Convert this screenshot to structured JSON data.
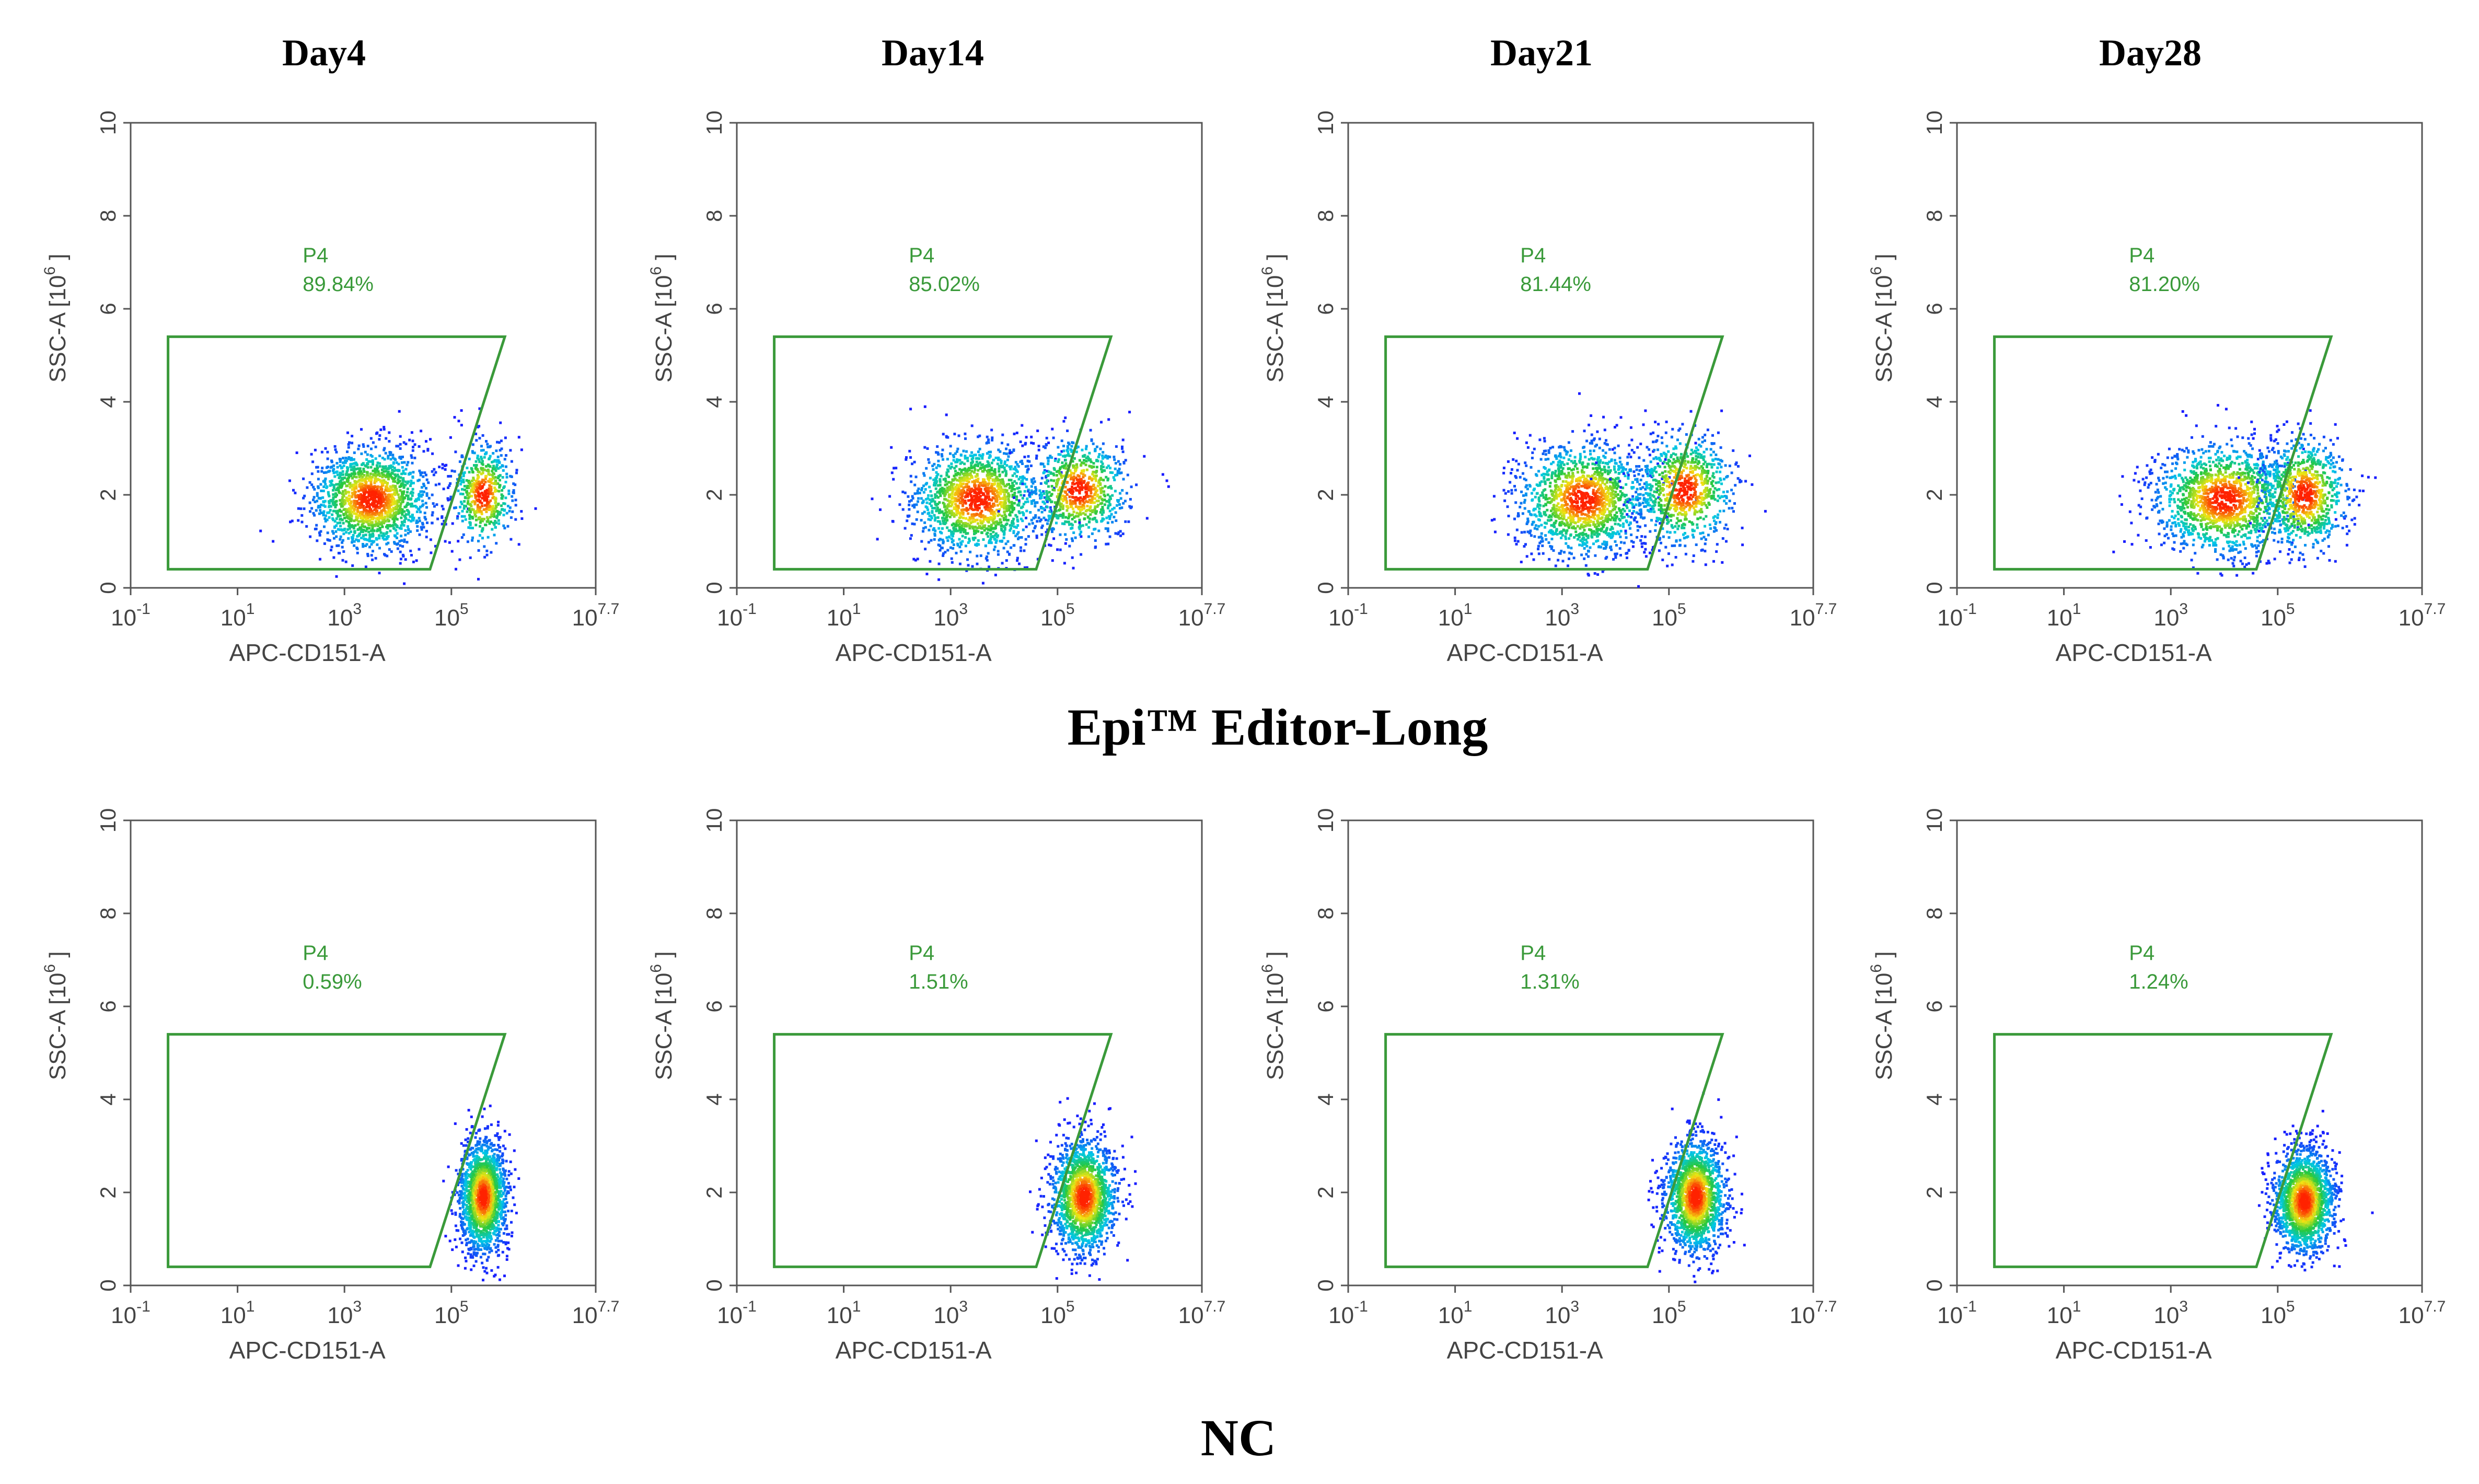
{
  "figure": {
    "column_titles": [
      "Day4",
      "Day14",
      "Day21",
      "Day28"
    ],
    "row_titles": [
      "Epi™ Editor-Long",
      "NC"
    ]
  },
  "colors": {
    "gate": "#3a9a3a",
    "axis_text": "#444444",
    "frame": "#555555",
    "density_low": "#1a1aff",
    "density_high": "#ff2200"
  },
  "chart_data": [
    {
      "type": "scatter",
      "group": "Epi™ Editor-Long",
      "day": "Day4",
      "xlabel": "APC-CD151-A",
      "ylabel": "SSC-A [10^6]",
      "ylabel_base": "SSC-A [10",
      "ylabel_exp": "6",
      "ylabel_tail": "]",
      "x_ticks": [
        {
          "b": "10",
          "e": "-1"
        },
        {
          "b": "10",
          "e": "1"
        },
        {
          "b": "10",
          "e": "3"
        },
        {
          "b": "10",
          "e": "5"
        },
        {
          "b": "10",
          "e": "7.7"
        }
      ],
      "xlim_log10": [
        -1,
        7.7
      ],
      "y_ticks": [
        "0",
        "2",
        "4",
        "6",
        "8",
        "10"
      ],
      "ylim": [
        0,
        10
      ],
      "gate": {
        "name": "P4",
        "percent": "89.84%",
        "polygon_data": [
          [
            -0.3,
            0.4
          ],
          [
            -0.3,
            5.4
          ],
          [
            6.0,
            5.4
          ],
          [
            4.6,
            0.4
          ]
        ]
      },
      "clusters": [
        {
          "cx": 3.5,
          "cy": 1.9,
          "sx": 0.55,
          "sy": 0.55,
          "n": 1600
        },
        {
          "cx": 5.6,
          "cy": 2.0,
          "sx": 0.28,
          "sy": 0.55,
          "n": 550
        }
      ]
    },
    {
      "type": "scatter",
      "group": "Epi™ Editor-Long",
      "day": "Day14",
      "xlabel": "APC-CD151-A",
      "ylabel": "SSC-A [10^6]",
      "ylabel_base": "SSC-A [10",
      "ylabel_exp": "6",
      "ylabel_tail": "]",
      "x_ticks": [
        {
          "b": "10",
          "e": "-1"
        },
        {
          "b": "10",
          "e": "1"
        },
        {
          "b": "10",
          "e": "3"
        },
        {
          "b": "10",
          "e": "5"
        },
        {
          "b": "10",
          "e": "7.7"
        }
      ],
      "xlim_log10": [
        -1,
        7.7
      ],
      "y_ticks": [
        "0",
        "2",
        "4",
        "6",
        "8",
        "10"
      ],
      "ylim": [
        0,
        10
      ],
      "gate": {
        "name": "P4",
        "percent": "85.02%",
        "polygon_data": [
          [
            -0.3,
            0.4
          ],
          [
            -0.3,
            5.4
          ],
          [
            6.0,
            5.4
          ],
          [
            4.6,
            0.4
          ]
        ]
      },
      "clusters": [
        {
          "cx": 3.5,
          "cy": 1.9,
          "sx": 0.6,
          "sy": 0.6,
          "n": 1500
        },
        {
          "cx": 5.4,
          "cy": 2.1,
          "sx": 0.45,
          "sy": 0.55,
          "n": 750
        }
      ]
    },
    {
      "type": "scatter",
      "group": "Epi™ Editor-Long",
      "day": "Day21",
      "xlabel": "APC-CD151-A",
      "ylabel": "SSC-A [10^6]",
      "ylabel_base": "SSC-A [10",
      "ylabel_exp": "6",
      "ylabel_tail": "]",
      "x_ticks": [
        {
          "b": "10",
          "e": "-1"
        },
        {
          "b": "10",
          "e": "1"
        },
        {
          "b": "10",
          "e": "3"
        },
        {
          "b": "10",
          "e": "5"
        },
        {
          "b": "10",
          "e": "7.7"
        }
      ],
      "xlim_log10": [
        -1,
        7.7
      ],
      "y_ticks": [
        "0",
        "2",
        "4",
        "6",
        "8",
        "10"
      ],
      "ylim": [
        0,
        10
      ],
      "gate": {
        "name": "P4",
        "percent": "81.44%",
        "polygon_data": [
          [
            -0.3,
            0.4
          ],
          [
            -0.3,
            5.4
          ],
          [
            6.0,
            5.4
          ],
          [
            4.6,
            0.4
          ]
        ]
      },
      "clusters": [
        {
          "cx": 3.4,
          "cy": 1.9,
          "sx": 0.6,
          "sy": 0.6,
          "n": 1450
        },
        {
          "cx": 5.3,
          "cy": 2.1,
          "sx": 0.45,
          "sy": 0.6,
          "n": 850
        }
      ]
    },
    {
      "type": "scatter",
      "group": "Epi™ Editor-Long",
      "day": "Day28",
      "xlabel": "APC-CD151-A",
      "ylabel": "SSC-A [10^6]",
      "ylabel_base": "SSC-A [10",
      "ylabel_exp": "6",
      "ylabel_tail": "]",
      "x_ticks": [
        {
          "b": "10",
          "e": "-1"
        },
        {
          "b": "10",
          "e": "1"
        },
        {
          "b": "10",
          "e": "3"
        },
        {
          "b": "10",
          "e": "5"
        },
        {
          "b": "10",
          "e": "7.7"
        }
      ],
      "xlim_log10": [
        -1,
        7.7
      ],
      "y_ticks": [
        "0",
        "2",
        "4",
        "6",
        "8",
        "10"
      ],
      "ylim": [
        0,
        10
      ],
      "gate": {
        "name": "P4",
        "percent": "81.20%",
        "polygon_data": [
          [
            -0.3,
            0.4
          ],
          [
            -0.3,
            5.4
          ],
          [
            6.0,
            5.4
          ],
          [
            4.6,
            0.4
          ]
        ]
      },
      "clusters": [
        {
          "cx": 4.0,
          "cy": 1.9,
          "sx": 0.65,
          "sy": 0.6,
          "n": 1500
        },
        {
          "cx": 5.5,
          "cy": 2.0,
          "sx": 0.4,
          "sy": 0.6,
          "n": 850
        }
      ]
    },
    {
      "type": "scatter",
      "group": "NC",
      "day": "Day4",
      "xlabel": "APC-CD151-A",
      "ylabel": "SSC-A [10^6]",
      "ylabel_base": "SSC-A [10",
      "ylabel_exp": "6",
      "ylabel_tail": "]",
      "x_ticks": [
        {
          "b": "10",
          "e": "-1"
        },
        {
          "b": "10",
          "e": "1"
        },
        {
          "b": "10",
          "e": "3"
        },
        {
          "b": "10",
          "e": "5"
        },
        {
          "b": "10",
          "e": "7.7"
        }
      ],
      "xlim_log10": [
        -1,
        7.7
      ],
      "y_ticks": [
        "0",
        "2",
        "4",
        "6",
        "8",
        "10"
      ],
      "ylim": [
        0,
        10
      ],
      "gate": {
        "name": "P4",
        "percent": "0.59%",
        "polygon_data": [
          [
            -0.3,
            0.4
          ],
          [
            -0.3,
            5.4
          ],
          [
            6.0,
            5.4
          ],
          [
            4.6,
            0.4
          ]
        ]
      },
      "clusters": [
        {
          "cx": 5.6,
          "cy": 1.9,
          "sx": 0.22,
          "sy": 0.6,
          "n": 1700
        }
      ]
    },
    {
      "type": "scatter",
      "group": "NC",
      "day": "Day14",
      "xlabel": "APC-CD151-A",
      "ylabel": "SSC-A [10^6]",
      "ylabel_base": "SSC-A [10",
      "ylabel_exp": "6",
      "ylabel_tail": "]",
      "x_ticks": [
        {
          "b": "10",
          "e": "-1"
        },
        {
          "b": "10",
          "e": "1"
        },
        {
          "b": "10",
          "e": "3"
        },
        {
          "b": "10",
          "e": "5"
        },
        {
          "b": "10",
          "e": "7.7"
        }
      ],
      "xlim_log10": [
        -1,
        7.7
      ],
      "y_ticks": [
        "0",
        "2",
        "4",
        "6",
        "8",
        "10"
      ],
      "ylim": [
        0,
        10
      ],
      "gate": {
        "name": "P4",
        "percent": "1.51%",
        "polygon_data": [
          [
            -0.3,
            0.4
          ],
          [
            -0.3,
            5.4
          ],
          [
            6.0,
            5.4
          ],
          [
            4.6,
            0.4
          ]
        ]
      },
      "clusters": [
        {
          "cx": 5.5,
          "cy": 1.9,
          "sx": 0.3,
          "sy": 0.6,
          "n": 1700
        }
      ]
    },
    {
      "type": "scatter",
      "group": "NC",
      "day": "Day21",
      "xlabel": "APC-CD151-A",
      "ylabel": "SSC-A [10^6]",
      "ylabel_base": "SSC-A [10",
      "ylabel_exp": "6",
      "ylabel_tail": "]",
      "x_ticks": [
        {
          "b": "10",
          "e": "-1"
        },
        {
          "b": "10",
          "e": "1"
        },
        {
          "b": "10",
          "e": "3"
        },
        {
          "b": "10",
          "e": "5"
        },
        {
          "b": "10",
          "e": "7.7"
        }
      ],
      "xlim_log10": [
        -1,
        7.7
      ],
      "y_ticks": [
        "0",
        "2",
        "4",
        "6",
        "8",
        "10"
      ],
      "ylim": [
        0,
        10
      ],
      "gate": {
        "name": "P4",
        "percent": "1.31%",
        "polygon_data": [
          [
            -0.3,
            0.4
          ],
          [
            -0.3,
            5.4
          ],
          [
            6.0,
            5.4
          ],
          [
            4.6,
            0.4
          ]
        ]
      },
      "clusters": [
        {
          "cx": 5.5,
          "cy": 1.9,
          "sx": 0.28,
          "sy": 0.6,
          "n": 1700
        }
      ]
    },
    {
      "type": "scatter",
      "group": "NC",
      "day": "Day28",
      "xlabel": "APC-CD151-A",
      "ylabel": "SSC-A [10^6]",
      "ylabel_base": "SSC-A [10",
      "ylabel_exp": "6",
      "ylabel_tail": "]",
      "x_ticks": [
        {
          "b": "10",
          "e": "-1"
        },
        {
          "b": "10",
          "e": "1"
        },
        {
          "b": "10",
          "e": "3"
        },
        {
          "b": "10",
          "e": "5"
        },
        {
          "b": "10",
          "e": "7.7"
        }
      ],
      "xlim_log10": [
        -1,
        7.7
      ],
      "y_ticks": [
        "0",
        "2",
        "4",
        "6",
        "8",
        "10"
      ],
      "ylim": [
        0,
        10
      ],
      "gate": {
        "name": "P4",
        "percent": "1.24%",
        "polygon_data": [
          [
            -0.3,
            0.4
          ],
          [
            -0.3,
            5.4
          ],
          [
            6.0,
            5.4
          ],
          [
            4.6,
            0.4
          ]
        ]
      },
      "clusters": [
        {
          "cx": 5.5,
          "cy": 1.8,
          "sx": 0.28,
          "sy": 0.55,
          "n": 1700
        }
      ]
    }
  ]
}
